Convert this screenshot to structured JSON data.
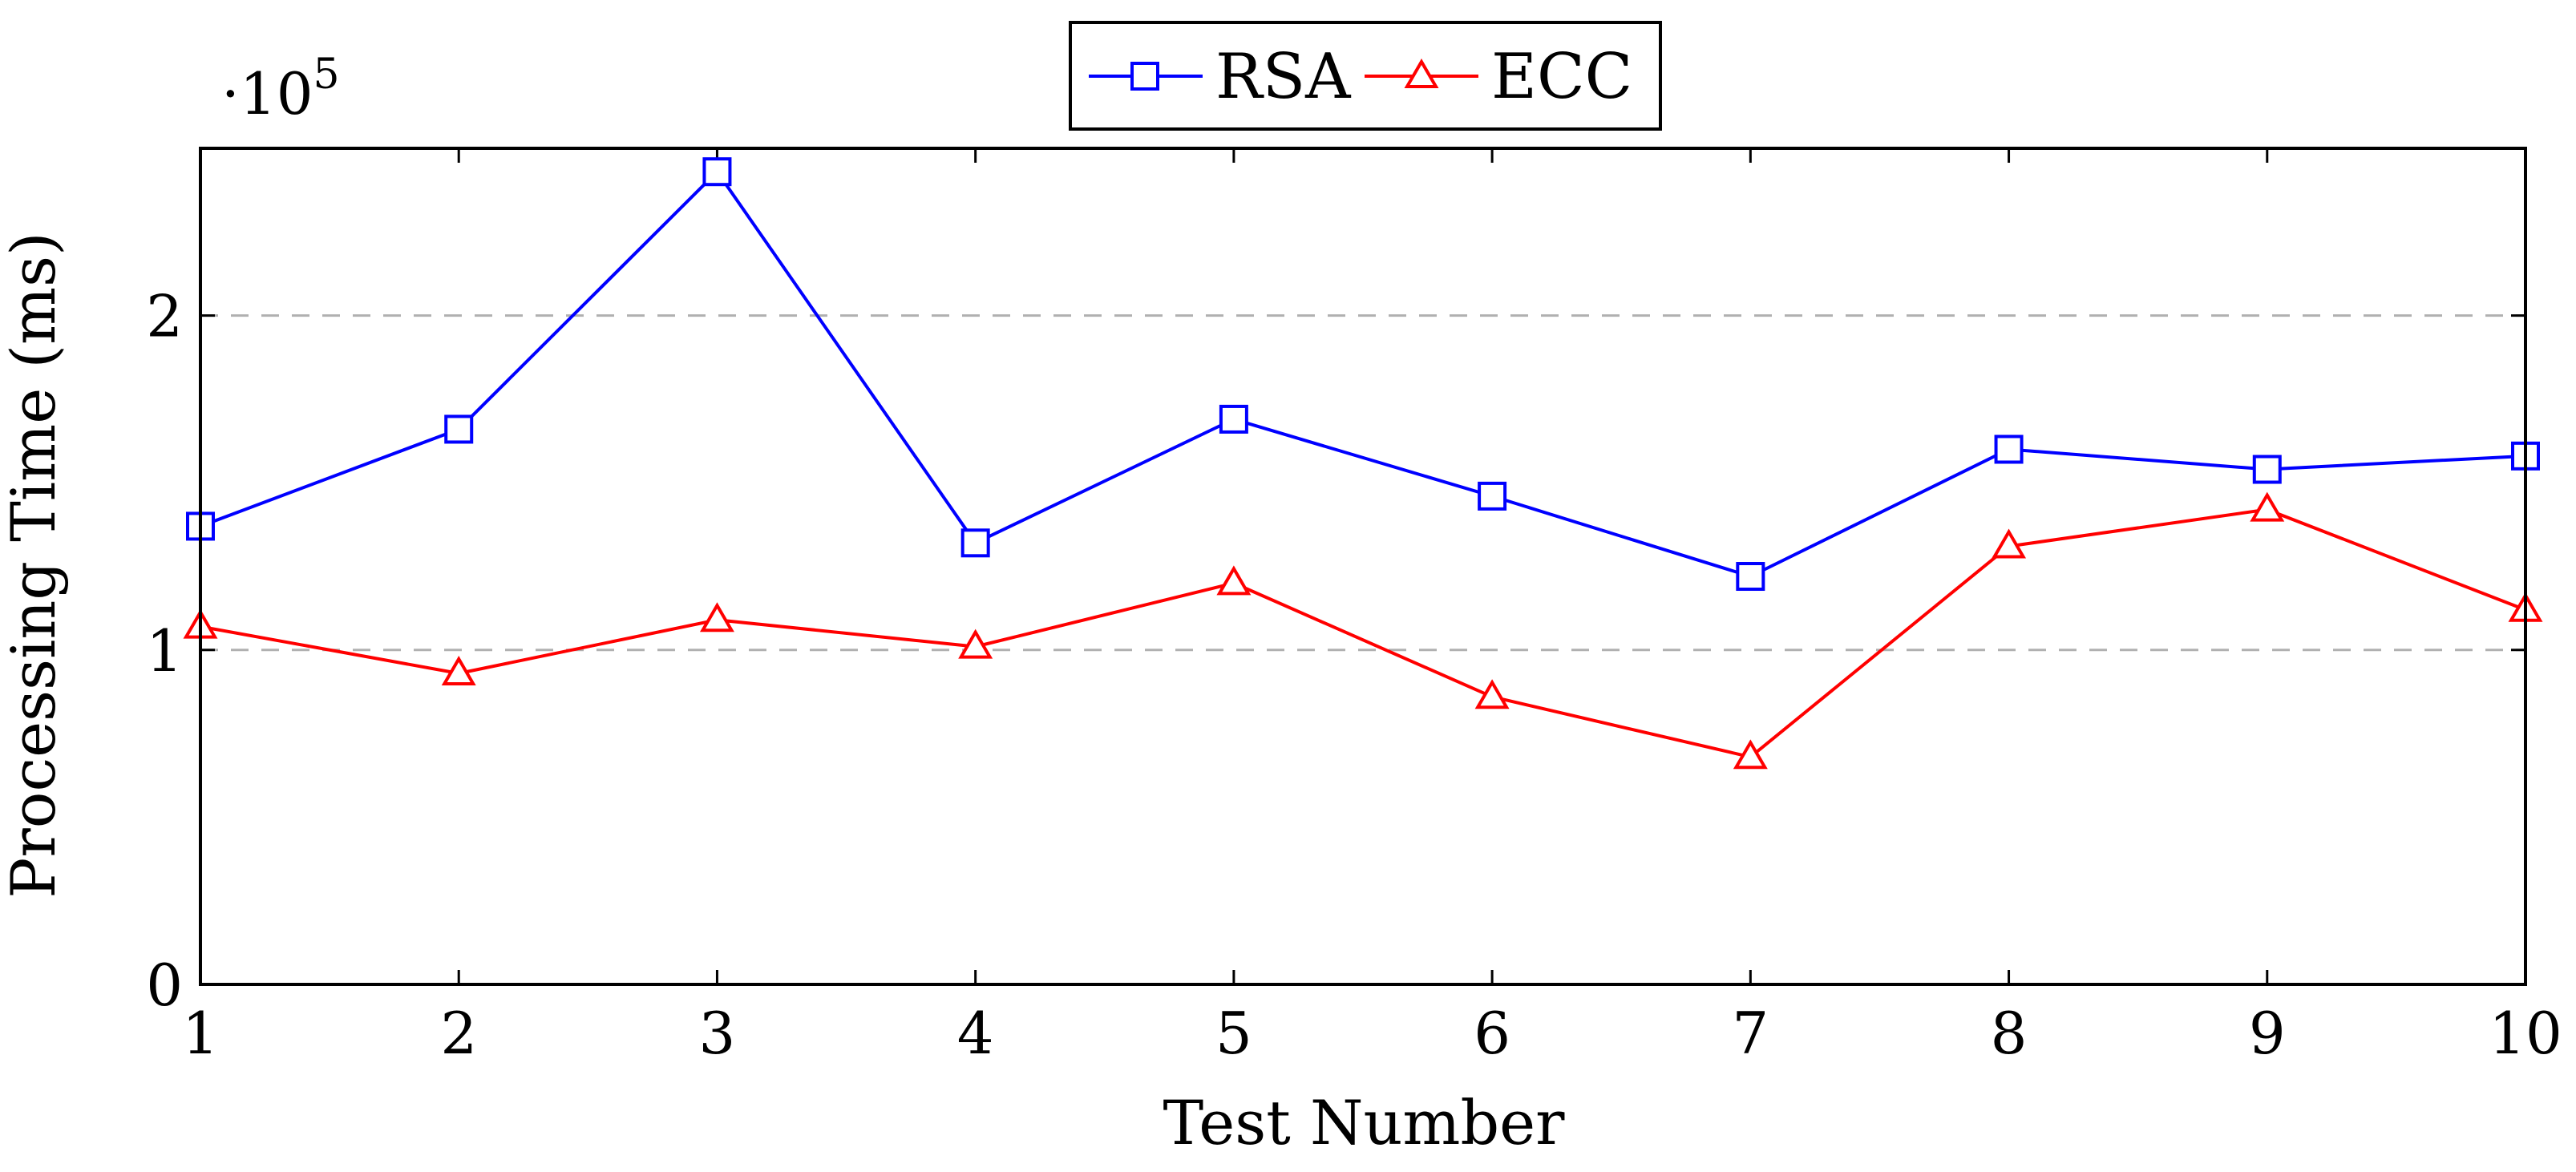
{
  "chart_data": {
    "type": "line",
    "x": [
      1,
      2,
      3,
      4,
      5,
      6,
      7,
      8,
      9,
      10
    ],
    "series": [
      {
        "name": "RSA",
        "color": "#0000ff",
        "marker": "square",
        "values": [
          137000,
          166000,
          243000,
          132000,
          169000,
          146000,
          122000,
          160000,
          154000,
          158000
        ]
      },
      {
        "name": "ECC",
        "color": "#ff0000",
        "marker": "triangle",
        "values": [
          107000,
          93000,
          109000,
          101000,
          120000,
          86000,
          68000,
          131000,
          142000,
          112000
        ]
      }
    ],
    "xlabel": "Test Number",
    "ylabel": "Processing Time (ms)",
    "y_scale_label": "·10",
    "y_scale_exponent": "5",
    "y_scale_factor": 100000,
    "x_ticks": [
      "1",
      "2",
      "3",
      "4",
      "5",
      "6",
      "7",
      "8",
      "9",
      "10"
    ],
    "y_ticks": [
      0,
      100000,
      200000
    ],
    "y_tick_labels": [
      "0",
      "1",
      "2"
    ],
    "xlim": [
      1,
      10
    ],
    "ylim": [
      0,
      250000
    ],
    "grid": "horizontal-dashed",
    "legend_position": "top-center"
  }
}
